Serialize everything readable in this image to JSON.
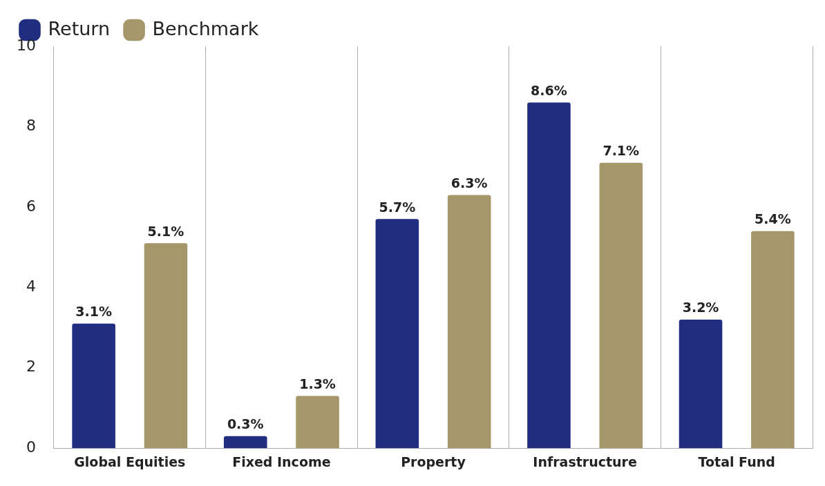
{
  "chart_data": {
    "type": "bar",
    "categories": [
      "Global Equities",
      "Fixed Income",
      "Property",
      "Infrastructure",
      "Total Fund"
    ],
    "series": [
      {
        "name": "Return",
        "color": "#212d80",
        "values": [
          3.1,
          0.3,
          5.7,
          8.6,
          3.2
        ],
        "value_labels": [
          "3.1%",
          "0.3%",
          "5.7%",
          "8.6%",
          "3.2%"
        ]
      },
      {
        "name": "Benchmark",
        "color": "#a5976a",
        "values": [
          5.1,
          1.3,
          6.3,
          7.1,
          5.4
        ],
        "value_labels": [
          "5.1%",
          "1.3%",
          "6.3%",
          "7.1%",
          "5.4%"
        ]
      }
    ],
    "ylim": [
      0,
      10
    ],
    "yticks": [
      0,
      2,
      4,
      6,
      8,
      10
    ],
    "grid": "x",
    "legend": "top left"
  }
}
